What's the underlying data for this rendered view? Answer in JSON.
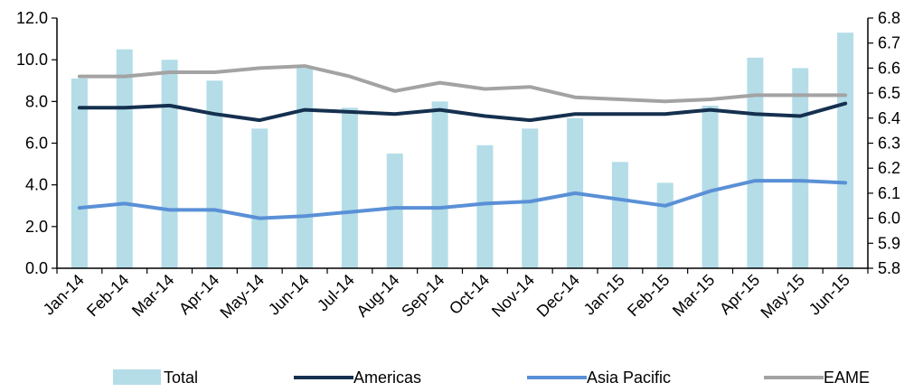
{
  "chart_data": {
    "type": "bar",
    "categories": [
      "Jan-14",
      "Feb-14",
      "Mar-14",
      "Apr-14",
      "May-14",
      "Jun-14",
      "Jul-14",
      "Aug-14",
      "Sep-14",
      "Oct-14",
      "Nov-14",
      "Dec-14",
      "Jan-15",
      "Feb-15",
      "Mar-15",
      "Apr-15",
      "May-15",
      "Jun-15"
    ],
    "left_axis": {
      "min": 0,
      "max": 12,
      "step": 2,
      "ticks": [
        "0.0",
        "2.0",
        "4.0",
        "6.0",
        "8.0",
        "10.0",
        "12.0"
      ]
    },
    "right_axis": {
      "min": 5.8,
      "max": 6.8,
      "step": 0.1,
      "ticks": [
        "5.8",
        "5.9",
        "6.0",
        "6.1",
        "6.2",
        "6.3",
        "6.4",
        "6.5",
        "6.6",
        "6.7",
        "6.8"
      ]
    },
    "series": [
      {
        "name": "Total",
        "kind": "bar",
        "axis": "left",
        "color": "#b4dde8",
        "values": [
          9.1,
          10.5,
          10.0,
          9.0,
          6.7,
          9.6,
          7.7,
          5.5,
          8.0,
          5.9,
          6.7,
          7.2,
          5.1,
          4.1,
          7.8,
          10.1,
          9.6,
          11.3
        ]
      },
      {
        "name": "Americas",
        "kind": "line",
        "axis": "left",
        "color": "#15304f",
        "values": [
          7.7,
          7.7,
          7.8,
          7.4,
          7.1,
          7.6,
          7.5,
          7.4,
          7.6,
          7.3,
          7.1,
          7.4,
          7.4,
          7.4,
          7.6,
          7.4,
          7.3,
          7.9
        ]
      },
      {
        "name": "Asia Pacific",
        "kind": "line",
        "axis": "left",
        "color": "#5a90d6",
        "values": [
          2.9,
          3.1,
          2.8,
          2.8,
          2.4,
          2.5,
          2.7,
          2.9,
          2.9,
          3.1,
          3.2,
          3.6,
          3.3,
          3.0,
          3.7,
          4.2,
          4.2,
          4.1
        ]
      },
      {
        "name": "EAME",
        "kind": "line",
        "axis": "left",
        "color": "#a3a3a3",
        "values": [
          9.2,
          9.2,
          9.4,
          9.4,
          9.6,
          9.7,
          9.2,
          8.5,
          8.9,
          8.6,
          8.7,
          8.2,
          8.1,
          8.0,
          8.1,
          8.3,
          8.3,
          8.3
        ]
      }
    ],
    "legend_position": "bottom",
    "grid": false
  }
}
